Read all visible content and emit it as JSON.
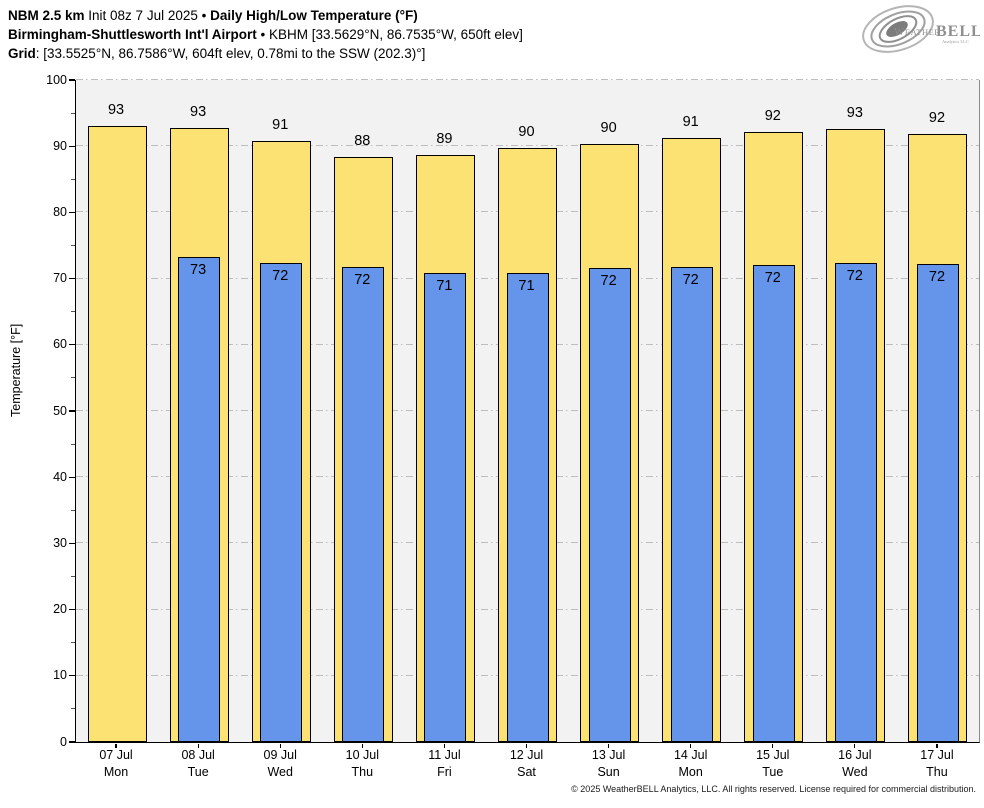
{
  "header": {
    "title_lines": [
      {
        "segments": [
          {
            "t": "NBM 2.5 km",
            "b": true
          },
          {
            "t": " Init 08z 7 Jul 2025 ",
            "b": false
          },
          {
            "t": "• ",
            "b": false
          },
          {
            "t": "Daily High/Low Temperature (°F)",
            "b": true
          }
        ]
      },
      {
        "segments": [
          {
            "t": "Birmingham-Shuttlesworth Int'l Airport",
            "b": true
          },
          {
            "t": " • ",
            "b": false
          },
          {
            "t": "KBHM [33.5629°N, 86.7535°W, 650ft elev]",
            "b": false
          }
        ]
      },
      {
        "segments": [
          {
            "t": "Grid",
            "b": true
          },
          {
            "t": ": [33.5525°N, 86.7586°W, 604ft elev, 0.78mi to the SSW (202.3)°]",
            "b": false
          }
        ]
      }
    ],
    "logo": {
      "brand_weather": "Weather",
      "brand_bell": "BELL",
      "brand_sub": "Analytics LLC"
    }
  },
  "chart_data": {
    "type": "bar",
    "title": "Daily High/Low Temperature (°F)",
    "ylabel": "Temperature [°F]",
    "ylim": [
      0,
      100
    ],
    "yticks": [
      0,
      10,
      20,
      30,
      40,
      50,
      60,
      70,
      80,
      90,
      100
    ],
    "yticks_minor": [
      5,
      15,
      25,
      35,
      45,
      55,
      65,
      75,
      85,
      95
    ],
    "grid": true,
    "grid_style": "dash-dot",
    "plot_background": "#f2f2f2",
    "categories_date": [
      "07 Jul",
      "08 Jul",
      "09 Jul",
      "10 Jul",
      "11 Jul",
      "12 Jul",
      "13 Jul",
      "14 Jul",
      "15 Jul",
      "16 Jul",
      "17 Jul"
    ],
    "categories_day": [
      "Mon",
      "Tue",
      "Wed",
      "Thu",
      "Fri",
      "Sat",
      "Sun",
      "Mon",
      "Tue",
      "Wed",
      "Thu"
    ],
    "series": [
      {
        "name": "High",
        "color": "#FBE273",
        "labels": [
          "93",
          "93",
          "91",
          "88",
          "89",
          "90",
          "90",
          "91",
          "92",
          "93",
          "92"
        ],
        "values": [
          93.1,
          92.8,
          90.8,
          88.4,
          88.7,
          89.7,
          90.3,
          91.2,
          92.1,
          92.6,
          91.8
        ]
      },
      {
        "name": "Low",
        "color": "#6495EA",
        "labels": [
          "",
          "73",
          "72",
          "72",
          "71",
          "71",
          "72",
          "72",
          "72",
          "72",
          "72"
        ],
        "values": [
          null,
          73.3,
          72.4,
          71.8,
          70.9,
          70.8,
          71.6,
          71.7,
          72.1,
          72.3,
          72.2
        ]
      }
    ]
  },
  "footer": {
    "copyright": "© 2025 WeatherBELL Analytics, LLC. All rights reserved. License required for commercial distribution."
  },
  "colors": {
    "high_bar": "#FBE273",
    "low_bar": "#6495EA",
    "bar_outline": "#000000",
    "plot_bg": "#f2f2f2",
    "gridline": "#bdbdbd",
    "logo_gray": "#8f8f8f"
  }
}
